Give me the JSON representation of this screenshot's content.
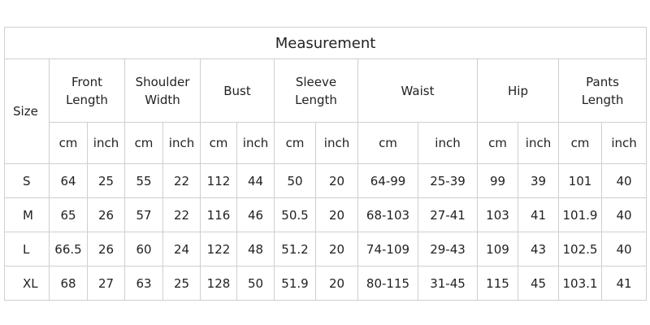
{
  "title": "Measurement",
  "table": {
    "size_header": "Size",
    "groups": [
      {
        "lines": [
          "Front",
          "Length"
        ],
        "units": [
          "cm",
          "inch"
        ]
      },
      {
        "lines": [
          "Shoulder",
          "Width"
        ],
        "units": [
          "cm",
          "inch"
        ]
      },
      {
        "lines": [
          "Bust"
        ],
        "units": [
          "cm",
          "inch"
        ]
      },
      {
        "lines": [
          "Sleeve",
          "Length"
        ],
        "units": [
          "cm",
          "inch"
        ]
      },
      {
        "lines": [
          "Waist"
        ],
        "units": [
          "cm",
          "inch"
        ]
      },
      {
        "lines": [
          "Hip"
        ],
        "units": [
          "cm",
          "inch"
        ]
      },
      {
        "lines": [
          "Pants",
          "Length"
        ],
        "units": [
          "cm",
          "inch"
        ]
      }
    ],
    "rows": [
      [
        "S",
        64,
        25,
        55,
        22,
        112,
        44,
        50,
        20,
        "64-99",
        "25-39",
        99,
        39,
        101,
        40
      ],
      [
        "M",
        65,
        26,
        57,
        22,
        116,
        46,
        50.5,
        20,
        "68-103",
        "27-41",
        103,
        41,
        101.9,
        40
      ],
      [
        "L",
        66.5,
        26,
        60,
        24,
        122,
        48,
        51.2,
        20,
        "74-109",
        "29-43",
        109,
        43,
        102.5,
        40
      ],
      [
        "XL",
        68,
        27,
        63,
        25,
        128,
        50,
        51.9,
        20,
        "80-115",
        "31-45",
        115,
        45,
        103.1,
        41
      ]
    ]
  }
}
